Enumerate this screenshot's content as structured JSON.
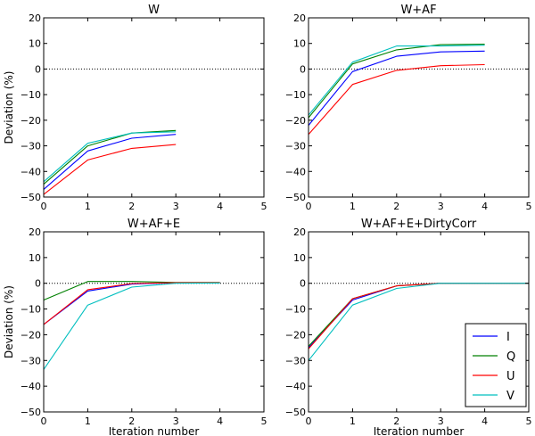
{
  "chart_data": [
    {
      "type": "line",
      "title": "W",
      "xlabel": "",
      "ylabel": "Deviation (%)",
      "xlim": [
        0,
        5
      ],
      "ylim": [
        -50,
        20
      ],
      "xticks": [
        "0",
        "1",
        "2",
        "3",
        "4",
        "5"
      ],
      "yticks": [
        "20",
        "10",
        "0",
        "−10",
        "−20",
        "−30",
        "−40",
        "−50"
      ],
      "reference_line": 0,
      "series": [
        {
          "name": "I",
          "x": [
            0,
            1,
            2,
            3
          ],
          "values": [
            -47,
            -32,
            -27,
            -25.5
          ]
        },
        {
          "name": "Q",
          "x": [
            0,
            1,
            2,
            3
          ],
          "values": [
            -45,
            -30,
            -25,
            -24
          ]
        },
        {
          "name": "U",
          "x": [
            0,
            1,
            2,
            3
          ],
          "values": [
            -49,
            -35.5,
            -31,
            -29.5
          ]
        },
        {
          "name": "V",
          "x": [
            0,
            1,
            2,
            3
          ],
          "values": [
            -44,
            -29,
            -25,
            -24.5
          ]
        }
      ]
    },
    {
      "type": "line",
      "title": "W+AF",
      "xlabel": "",
      "ylabel": "",
      "xlim": [
        0,
        5
      ],
      "ylim": [
        -50,
        20
      ],
      "xticks": [
        "0",
        "1",
        "2",
        "3",
        "4",
        "5"
      ],
      "yticks": [
        "20",
        "10",
        "0",
        "−10",
        "−20",
        "−30",
        "−40",
        "−50"
      ],
      "reference_line": 0,
      "series": [
        {
          "name": "I",
          "x": [
            0,
            1,
            2,
            3,
            4
          ],
          "values": [
            -22,
            -1,
            5,
            6.7,
            7
          ]
        },
        {
          "name": "Q",
          "x": [
            0,
            1,
            2,
            3,
            4
          ],
          "values": [
            -19,
            2,
            7.5,
            9.5,
            9.7
          ]
        },
        {
          "name": "U",
          "x": [
            0,
            1,
            2,
            3,
            4
          ],
          "values": [
            -25.5,
            -6,
            -0.5,
            1.3,
            1.7
          ]
        },
        {
          "name": "V",
          "x": [
            0,
            1,
            2,
            3,
            4
          ],
          "values": [
            -18,
            2.7,
            9,
            9,
            9.3
          ]
        }
      ]
    },
    {
      "type": "line",
      "title": "W+AF+E",
      "xlabel": "Iteration number",
      "ylabel": "Deviation (%)",
      "xlim": [
        0,
        5
      ],
      "ylim": [
        -50,
        20
      ],
      "xticks": [
        "0",
        "1",
        "2",
        "3",
        "4",
        "5"
      ],
      "yticks": [
        "20",
        "10",
        "0",
        "−10",
        "−20",
        "−30",
        "−40",
        "−50"
      ],
      "reference_line": 0,
      "series": [
        {
          "name": "I",
          "x": [
            0,
            1,
            2,
            3,
            4
          ],
          "values": [
            -16,
            -3,
            -0.3,
            0.2,
            0.2
          ]
        },
        {
          "name": "Q",
          "x": [
            0,
            1,
            2,
            3,
            4
          ],
          "values": [
            -6.5,
            0.7,
            0.7,
            0.3,
            0.3
          ]
        },
        {
          "name": "U",
          "x": [
            0,
            1,
            2,
            3,
            4
          ],
          "values": [
            -16,
            -2.5,
            -0.1,
            0.2,
            0.2
          ]
        },
        {
          "name": "V",
          "x": [
            0,
            1,
            2,
            3,
            4
          ],
          "values": [
            -33.5,
            -8.5,
            -1.5,
            0,
            0.1
          ]
        }
      ]
    },
    {
      "type": "line",
      "title": "W+AF+E+DirtyCorr",
      "xlabel": "Iteration number",
      "ylabel": "",
      "xlim": [
        0,
        5
      ],
      "ylim": [
        -50,
        20
      ],
      "xticks": [
        "0",
        "1",
        "2",
        "3",
        "4",
        "5"
      ],
      "yticks": [
        "20",
        "10",
        "0",
        "−10",
        "−20",
        "−30",
        "−40",
        "−50"
      ],
      "reference_line": 0,
      "legend": {
        "position": "bottom-right",
        "labels": [
          "I",
          "Q",
          "U",
          "V"
        ]
      },
      "series": [
        {
          "name": "I",
          "x": [
            0,
            1,
            2,
            3,
            4,
            5
          ],
          "values": [
            -25,
            -6.5,
            -1,
            0,
            0,
            0
          ]
        },
        {
          "name": "Q",
          "x": [
            0,
            1,
            2,
            3,
            4,
            5
          ],
          "values": [
            -24.5,
            -6,
            -1,
            0,
            0,
            0
          ]
        },
        {
          "name": "U",
          "x": [
            0,
            1,
            2,
            3,
            4,
            5
          ],
          "values": [
            -25.5,
            -6,
            -1,
            0,
            0,
            0
          ]
        },
        {
          "name": "V",
          "x": [
            0,
            1,
            2,
            3,
            4,
            5
          ],
          "values": [
            -30,
            -8.5,
            -2,
            0,
            0,
            0
          ]
        }
      ]
    }
  ],
  "colors": {
    "I": "#0000ff",
    "Q": "#008000",
    "U": "#ff0000",
    "V": "#00bfbf"
  }
}
